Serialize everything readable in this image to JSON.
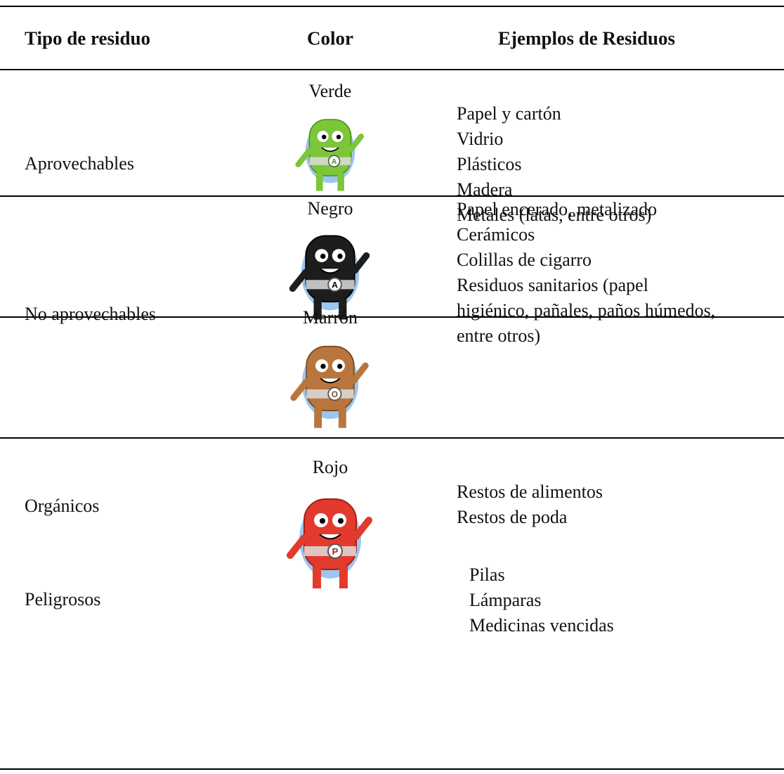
{
  "table": {
    "header": [
      "Tipo de residuo",
      "Color",
      "Ejemplos de Residuos"
    ],
    "rows": [
      {
        "type": "Aprovechables",
        "color": "Verde",
        "badge": "A",
        "examples": [
          "Papel y cartón",
          "Vidrio",
          "Plásticos",
          "Madera",
          "Metales (latas, entre otros)"
        ]
      },
      {
        "type": "No aprovechables",
        "color": "Negro",
        "badge": "A",
        "examples": [
          "Papel encerado, metalizado",
          "Cerámicos",
          "Colillas de cigarro",
          "Residuos sanitarios (papel",
          "higiénico, pañales, paños húmedos,",
          "entre otros)"
        ]
      },
      {
        "type": "Orgánicos",
        "color": "Marrón",
        "badge": "O",
        "examples": [
          "Restos de alimentos",
          "Restos de poda"
        ]
      },
      {
        "type": "Peligrosos",
        "color": "Rojo",
        "badge": "P",
        "examples": [
          "Pilas",
          "Lámparas",
          "Medicinas vencidas"
        ]
      }
    ]
  }
}
